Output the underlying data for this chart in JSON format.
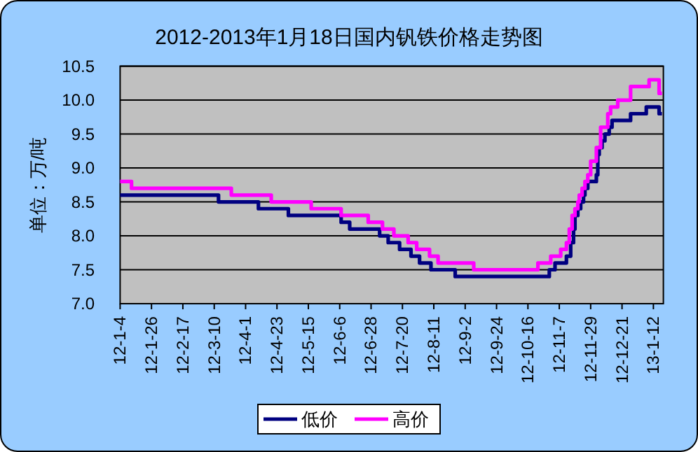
{
  "chart_data": {
    "type": "step",
    "title": "2012-2013年1月18日国内钒铁价格走势图",
    "ylabel": "单位：万/吨",
    "xlim": [
      "2012-01-04",
      "2013-01-19"
    ],
    "xticks": [
      {
        "value": "2012-01-04",
        "label": "12-1-4"
      },
      {
        "value": "2012-01-26",
        "label": "12-1-26"
      },
      {
        "value": "2012-02-17",
        "label": "12-2-17"
      },
      {
        "value": "2012-03-10",
        "label": "12-3-10"
      },
      {
        "value": "2012-04-01",
        "label": "12-4-1"
      },
      {
        "value": "2012-04-23",
        "label": "12-4-23"
      },
      {
        "value": "2012-05-15",
        "label": "12-5-15"
      },
      {
        "value": "2012-06-06",
        "label": "12-6-6"
      },
      {
        "value": "2012-06-28",
        "label": "12-6-28"
      },
      {
        "value": "2012-07-20",
        "label": "12-7-20"
      },
      {
        "value": "2012-08-11",
        "label": "12-8-11"
      },
      {
        "value": "2012-09-02",
        "label": "12-9-2"
      },
      {
        "value": "2012-09-24",
        "label": "12-9-24"
      },
      {
        "value": "2012-10-16",
        "label": "12-10-16"
      },
      {
        "value": "2012-11-07",
        "label": "12-11-7"
      },
      {
        "value": "2012-11-29",
        "label": "12-11-29"
      },
      {
        "value": "2012-12-21",
        "label": "12-12-21"
      },
      {
        "value": "2013-01-12",
        "label": "13-1-12"
      }
    ],
    "ylim": [
      7,
      10.5
    ],
    "yticks": [
      {
        "value": 7,
        "label": "7.0"
      },
      7.5,
      {
        "value": 8,
        "label": "8.0"
      },
      8.5,
      {
        "value": 9,
        "label": "9.0"
      },
      9.5,
      {
        "value": 10,
        "label": "10.0"
      },
      10.5
    ],
    "grid": "y",
    "legend": "bottom",
    "series": [
      {
        "name": "低价",
        "color": "#000080",
        "x": [
          "2012-01-04",
          "2012-03-13",
          "2012-04-10",
          "2012-05-01",
          "2012-06-07",
          "2012-06-13",
          "2012-07-04",
          "2012-07-10",
          "2012-07-18",
          "2012-07-26",
          "2012-08-01",
          "2012-08-09",
          "2012-08-26",
          "2012-10-31",
          "2012-11-04",
          "2012-11-12",
          "2012-11-15",
          "2012-11-17",
          "2012-11-18",
          "2012-11-20",
          "2012-11-22",
          "2012-11-24",
          "2012-11-25",
          "2012-11-27",
          "2012-12-03",
          "2012-12-04",
          "2012-12-05",
          "2012-12-07",
          "2012-12-09",
          "2012-12-12",
          "2012-12-14",
          "2012-12-27",
          "2013-01-07",
          "2013-01-16",
          "2013-01-18"
        ],
        "values": [
          8.6,
          8.5,
          8.4,
          8.3,
          8.2,
          8.1,
          8.0,
          7.9,
          7.8,
          7.7,
          7.6,
          7.5,
          7.4,
          7.5,
          7.6,
          7.7,
          7.9,
          8.1,
          8.3,
          8.4,
          8.5,
          8.6,
          8.7,
          8.8,
          8.9,
          9.2,
          9.3,
          9.4,
          9.5,
          9.6,
          9.7,
          9.8,
          9.9,
          9.8,
          9.8
        ]
      },
      {
        "name": "高价",
        "color": "#ff00ff",
        "x": [
          "2012-01-04",
          "2012-01-12",
          "2012-03-22",
          "2012-04-19",
          "2012-05-17",
          "2012-06-07",
          "2012-06-26",
          "2012-07-06",
          "2012-07-14",
          "2012-07-24",
          "2012-07-30",
          "2012-08-08",
          "2012-08-14",
          "2012-09-08",
          "2012-10-23",
          "2012-11-01",
          "2012-11-08",
          "2012-11-12",
          "2012-11-14",
          "2012-11-16",
          "2012-11-18",
          "2012-11-20",
          "2012-11-21",
          "2012-11-23",
          "2012-11-25",
          "2012-11-27",
          "2012-11-29",
          "2012-12-03",
          "2012-12-06",
          "2012-12-11",
          "2012-12-13",
          "2012-12-18",
          "2012-12-27",
          "2013-01-09",
          "2013-01-16",
          "2013-01-18"
        ],
        "values": [
          8.8,
          8.7,
          8.6,
          8.5,
          8.4,
          8.3,
          8.2,
          8.1,
          8.0,
          7.9,
          7.8,
          7.7,
          7.6,
          7.5,
          7.6,
          7.7,
          7.8,
          7.9,
          8.1,
          8.3,
          8.4,
          8.5,
          8.6,
          8.7,
          8.8,
          8.9,
          9.1,
          9.3,
          9.6,
          9.8,
          9.9,
          10.0,
          10.2,
          10.3,
          10.1,
          10.1
        ]
      }
    ]
  }
}
